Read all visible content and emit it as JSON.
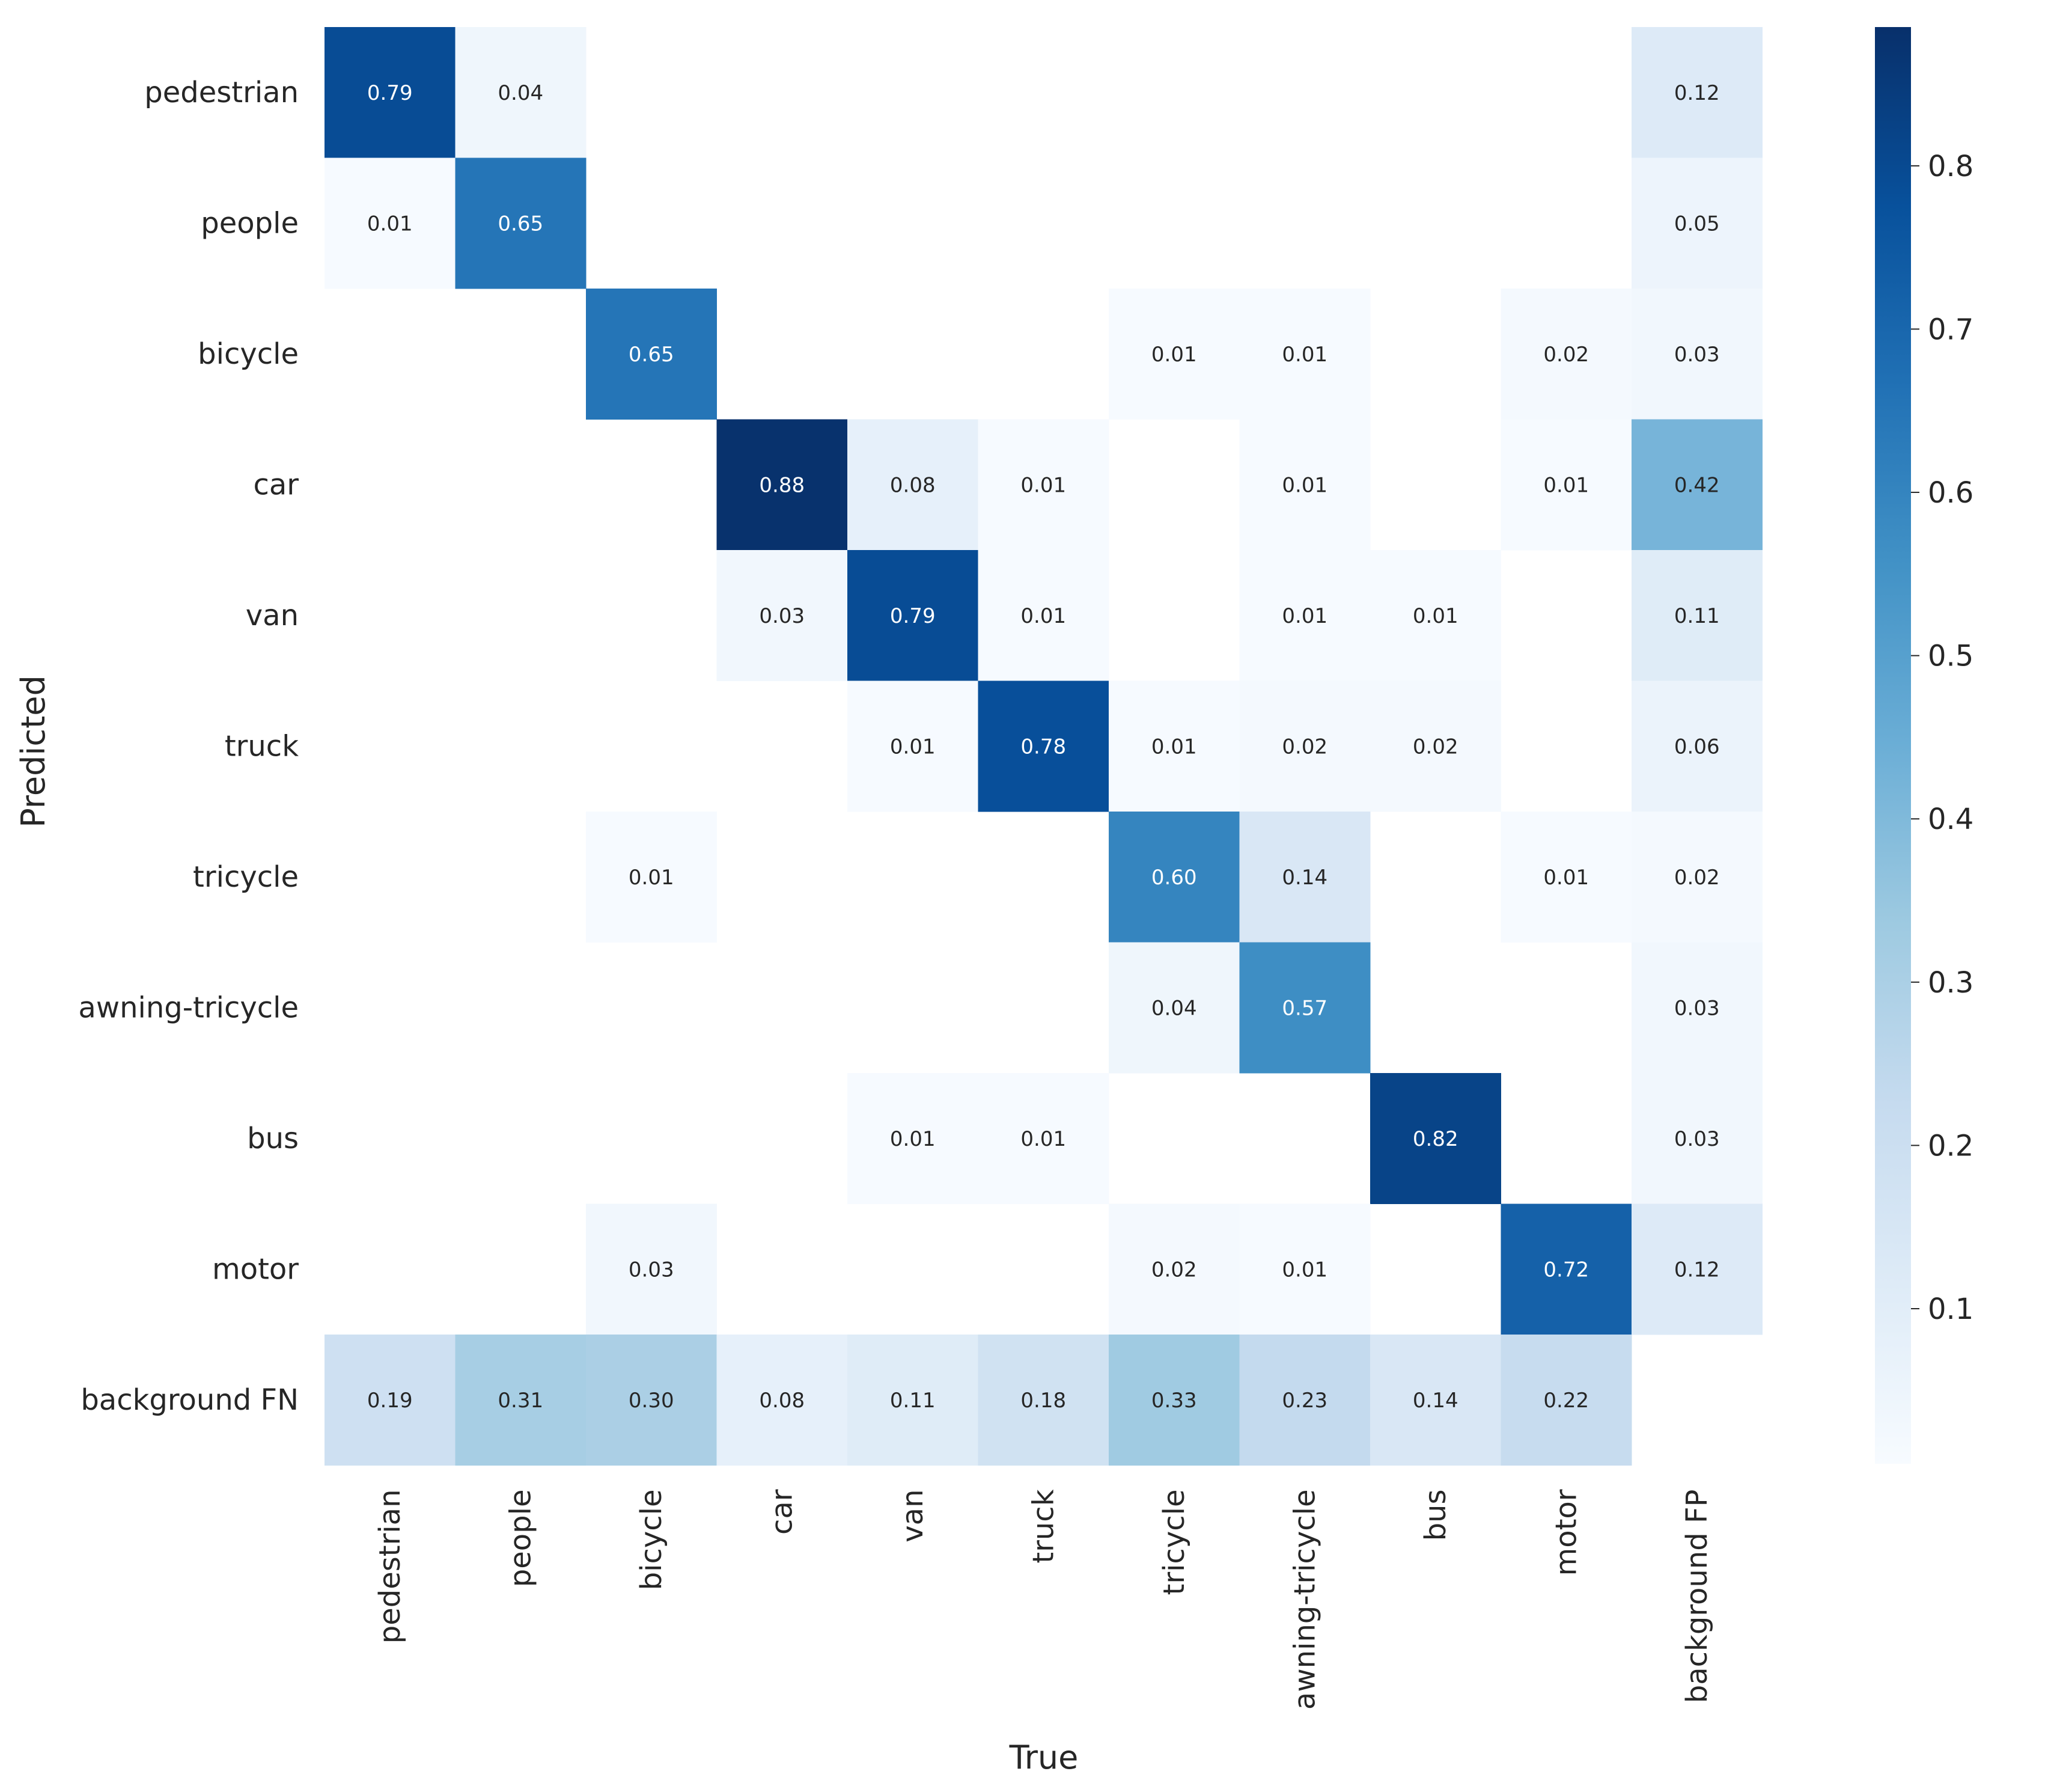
{
  "chart_data": {
    "type": "heatmap",
    "xlabel": "True",
    "ylabel": "Predicted",
    "x_categories": [
      "pedestrian",
      "people",
      "bicycle",
      "car",
      "van",
      "truck",
      "tricycle",
      "awning-tricycle",
      "bus",
      "motor",
      "background FP"
    ],
    "y_categories": [
      "pedestrian",
      "people",
      "bicycle",
      "car",
      "van",
      "truck",
      "tricycle",
      "awning-tricycle",
      "bus",
      "motor",
      "background FN"
    ],
    "values": [
      [
        0.79,
        0.04,
        null,
        null,
        null,
        null,
        null,
        null,
        null,
        null,
        0.12
      ],
      [
        0.01,
        0.65,
        null,
        null,
        null,
        null,
        null,
        null,
        null,
        null,
        0.05
      ],
      [
        null,
        null,
        0.65,
        null,
        null,
        null,
        0.01,
        0.01,
        null,
        0.02,
        0.03
      ],
      [
        null,
        null,
        null,
        0.88,
        0.08,
        0.01,
        null,
        0.01,
        null,
        0.01,
        0.42
      ],
      [
        null,
        null,
        null,
        0.03,
        0.79,
        0.01,
        null,
        0.01,
        0.01,
        null,
        0.11
      ],
      [
        null,
        null,
        null,
        null,
        0.01,
        0.78,
        0.01,
        0.02,
        0.02,
        null,
        0.06
      ],
      [
        null,
        null,
        0.01,
        null,
        null,
        null,
        0.6,
        0.14,
        null,
        0.01,
        0.02
      ],
      [
        null,
        null,
        null,
        null,
        null,
        null,
        0.04,
        0.57,
        null,
        null,
        0.03
      ],
      [
        null,
        null,
        null,
        null,
        0.01,
        0.01,
        null,
        null,
        0.82,
        null,
        0.03
      ],
      [
        null,
        null,
        0.03,
        null,
        null,
        null,
        0.02,
        0.01,
        null,
        0.72,
        0.12
      ],
      [
        0.19,
        0.31,
        0.3,
        0.08,
        0.11,
        0.18,
        0.33,
        0.23,
        0.14,
        0.22,
        null
      ]
    ],
    "value_format": "2 decimals",
    "colormap": "Blues",
    "vmin": 0.005,
    "vmax": 0.885,
    "colorbar_ticks": [
      0.1,
      0.2,
      0.3,
      0.4,
      0.5,
      0.6,
      0.7,
      0.8
    ],
    "colorbar_tick_labels": [
      "0.1",
      "0.2",
      "0.3",
      "0.4",
      "0.5",
      "0.6",
      "0.7",
      "0.8"
    ],
    "colorbar_placement": "right",
    "label_colors": {
      "dark_text": "#262626",
      "light_text": "#ffffff"
    }
  }
}
